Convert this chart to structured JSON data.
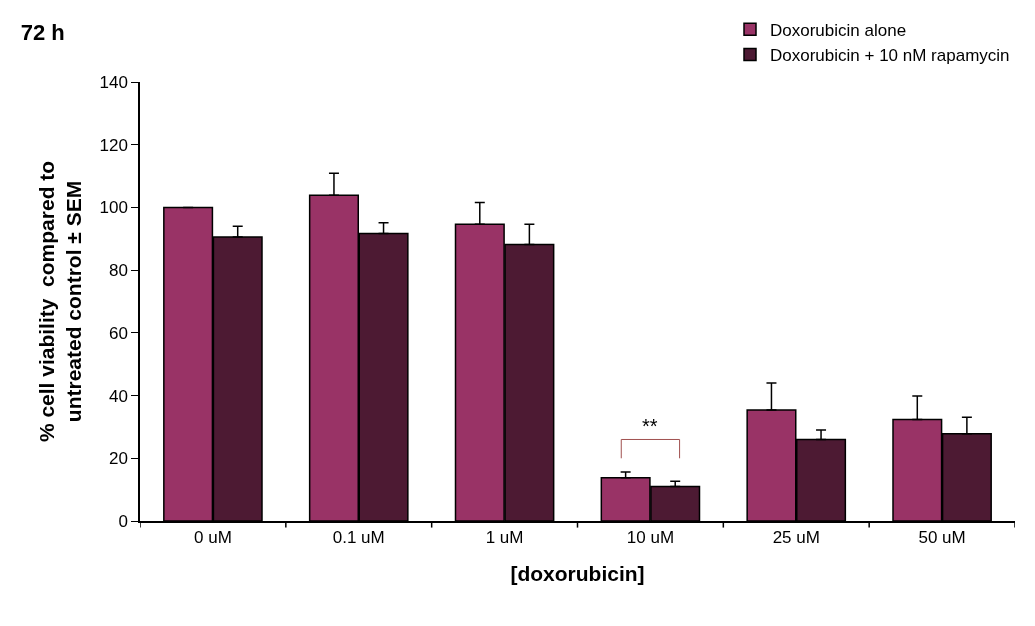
{
  "chart_data": {
    "type": "bar",
    "title": "72 h",
    "xlabel": "[doxorubicin]",
    "ylabel": "% cell viability  compared to untreated control ± SEM",
    "categories": [
      "0 uM",
      "0.1 uM",
      "1 uM",
      "10 uM",
      "25 uM",
      "50 uM"
    ],
    "series": [
      {
        "name": "Doxorubicin alone",
        "color": "#993366",
        "values": [
          100,
          103.9,
          94.6,
          13.8,
          35.4,
          32.4
        ],
        "errors": [
          [
            100,
            100
          ],
          [
            103.9,
            110.9
          ],
          [
            94.6,
            101.6
          ],
          [
            13.8,
            15.6
          ],
          [
            35.4,
            44.0
          ],
          [
            32.4,
            39.9
          ]
        ]
      },
      {
        "name": "Doxorubicin + 10 nM rapamycin",
        "color": "#4d1a33",
        "values": [
          90.6,
          91.7,
          88.2,
          11.0,
          26.0,
          27.8
        ],
        "errors": [
          [
            90.6,
            94.0
          ],
          [
            91.7,
            95.1
          ],
          [
            88.2,
            94.6
          ],
          [
            11.0,
            12.7
          ],
          [
            26.0,
            29.0
          ],
          [
            27.8,
            33.1
          ]
        ]
      }
    ],
    "annotations": [
      "**"
    ],
    "ylim": [
      0,
      140
    ],
    "yticks": [
      0,
      20,
      40,
      60,
      80,
      100,
      120,
      140
    ],
    "grid": false,
    "legend": "top right"
  }
}
